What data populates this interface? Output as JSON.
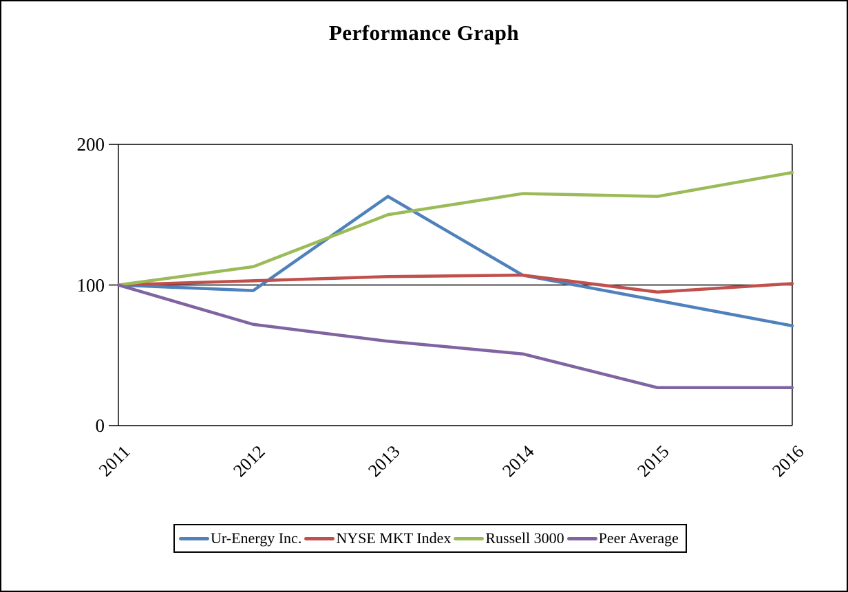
{
  "title": "Performance Graph",
  "chart_data": {
    "type": "line",
    "title": "Performance Graph",
    "x": [
      "2011",
      "2012",
      "2013",
      "2014",
      "2015",
      "2016"
    ],
    "series": [
      {
        "name": "Ur-Energy Inc.",
        "color": "#4F81BD",
        "values": [
          100,
          96,
          163,
          107,
          89,
          71
        ]
      },
      {
        "name": "NYSE MKT Index",
        "color": "#C0504D",
        "values": [
          100,
          103,
          106,
          107,
          95,
          101
        ]
      },
      {
        "name": "Russell 3000",
        "color": "#9BBB59",
        "values": [
          100,
          113,
          150,
          165,
          163,
          180
        ]
      },
      {
        "name": "Peer Average",
        "color": "#8064A2",
        "values": [
          100,
          72,
          60,
          51,
          27,
          27
        ]
      }
    ],
    "xlabel": "",
    "ylabel": "",
    "yticks": [
      0,
      100,
      200
    ],
    "ylim": [
      0,
      200
    ],
    "grid": "horizontal gridlines at 0, 100, 200; left and right plot borders",
    "legend_position": "bottom",
    "axis_color": "#000000",
    "background_color": "#ffffff"
  }
}
